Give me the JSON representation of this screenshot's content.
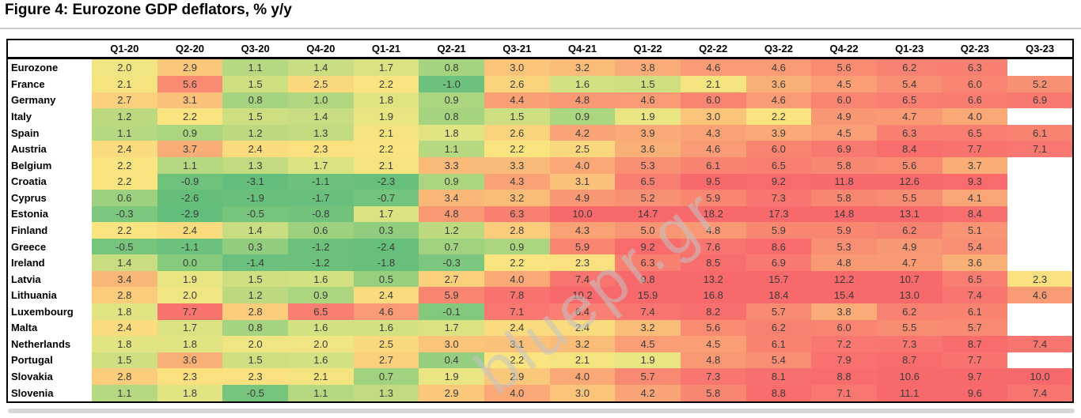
{
  "figure": {
    "title": "Figure 4: Eurozone GDP deflators, % y/y"
  },
  "watermark": {
    "text": "bluepr.gr"
  },
  "chart_data": {
    "type": "heatmap",
    "title": "Figure 4: Eurozone GDP deflators, % y/y",
    "unit": "% y/y",
    "columns": [
      "Q1-20",
      "Q2-20",
      "Q3-20",
      "Q4-20",
      "Q1-21",
      "Q2-21",
      "Q3-21",
      "Q4-21",
      "Q1-22",
      "Q2-22",
      "Q3-22",
      "Q4-22",
      "Q1-23",
      "Q2-23",
      "Q3-23"
    ],
    "rows": [
      {
        "name": "Eurozone",
        "values": [
          2.0,
          2.9,
          1.1,
          1.4,
          1.7,
          0.8,
          3.0,
          3.2,
          3.8,
          4.6,
          4.6,
          5.6,
          6.2,
          6.3,
          null
        ]
      },
      {
        "name": "France",
        "values": [
          2.1,
          5.6,
          1.5,
          2.5,
          2.2,
          -1.0,
          2.6,
          1.6,
          1.5,
          2.1,
          3.6,
          4.5,
          5.4,
          6.0,
          5.2
        ]
      },
      {
        "name": "Germany",
        "values": [
          2.7,
          3.1,
          0.8,
          1.0,
          1.8,
          0.9,
          4.4,
          4.8,
          4.6,
          6.0,
          4.6,
          6.0,
          6.5,
          6.6,
          6.9
        ]
      },
      {
        "name": "Italy",
        "values": [
          1.2,
          2.2,
          1.5,
          1.4,
          1.9,
          0.8,
          1.5,
          0.9,
          1.9,
          3.0,
          2.2,
          4.9,
          4.7,
          4.0,
          null
        ]
      },
      {
        "name": "Spain",
        "values": [
          1.1,
          0.9,
          1.2,
          1.3,
          2.1,
          1.8,
          2.6,
          4.2,
          3.9,
          4.3,
          3.9,
          4.5,
          6.3,
          6.5,
          6.1
        ]
      },
      {
        "name": "Austria",
        "values": [
          2.4,
          3.7,
          2.4,
          2.3,
          2.2,
          1.1,
          2.2,
          2.5,
          3.6,
          4.6,
          6.0,
          6.9,
          8.4,
          7.7,
          7.1
        ]
      },
      {
        "name": "Belgium",
        "values": [
          2.2,
          1.1,
          1.3,
          1.7,
          2.1,
          3.3,
          3.3,
          4.0,
          5.3,
          6.1,
          6.5,
          5.8,
          5.6,
          3.7,
          null
        ]
      },
      {
        "name": "Croatia",
        "values": [
          2.2,
          -0.9,
          -3.1,
          -1.1,
          -2.3,
          0.9,
          4.3,
          3.1,
          6.5,
          9.5,
          9.2,
          11.8,
          12.6,
          9.3,
          null
        ]
      },
      {
        "name": "Cyprus",
        "values": [
          0.6,
          -2.6,
          -1.9,
          -1.7,
          -0.7,
          3.4,
          3.2,
          4.9,
          5.2,
          5.9,
          7.3,
          5.8,
          5.5,
          4.1,
          null
        ]
      },
      {
        "name": "Estonia",
        "values": [
          -0.3,
          -2.9,
          -0.5,
          -0.8,
          1.7,
          4.8,
          6.3,
          10.0,
          14.7,
          18.2,
          17.3,
          14.8,
          13.1,
          8.4,
          null
        ]
      },
      {
        "name": "Finland",
        "values": [
          2.2,
          2.4,
          1.4,
          0.6,
          0.3,
          1.2,
          2.8,
          4.3,
          5.0,
          4.8,
          5.9,
          5.9,
          6.2,
          5.1,
          null
        ]
      },
      {
        "name": "Greece",
        "values": [
          -0.5,
          -1.1,
          0.3,
          -1.2,
          -2.4,
          0.7,
          0.9,
          5.9,
          9.2,
          7.6,
          8.6,
          5.3,
          4.9,
          5.4,
          null
        ]
      },
      {
        "name": "Ireland",
        "values": [
          1.4,
          0.0,
          -1.4,
          -1.2,
          -1.8,
          -0.3,
          2.2,
          2.3,
          6.3,
          8.5,
          6.9,
          4.8,
          4.7,
          3.6,
          null
        ]
      },
      {
        "name": "Latvia",
        "values": [
          3.4,
          1.9,
          1.5,
          1.6,
          0.5,
          2.7,
          4.0,
          7.4,
          9.8,
          13.2,
          15.7,
          12.2,
          10.7,
          6.5,
          2.3
        ]
      },
      {
        "name": "Lithuania",
        "values": [
          2.8,
          2.0,
          1.2,
          0.9,
          2.4,
          5.9,
          7.8,
          10.2,
          15.9,
          16.8,
          18.4,
          15.4,
          13.0,
          7.4,
          4.6
        ]
      },
      {
        "name": "Luxembourg",
        "values": [
          1.8,
          7.7,
          2.8,
          6.5,
          4.6,
          -0.1,
          7.1,
          6.4,
          7.4,
          8.2,
          5.7,
          3.8,
          6.2,
          6.1,
          null
        ]
      },
      {
        "name": "Malta",
        "values": [
          2.4,
          1.7,
          0.8,
          1.6,
          1.6,
          1.7,
          2.4,
          2.4,
          3.2,
          5.6,
          6.2,
          6.0,
          5.5,
          5.7,
          null
        ]
      },
      {
        "name": "Netherlands",
        "values": [
          1.8,
          1.8,
          2.0,
          2.0,
          2.5,
          3.0,
          3.1,
          3.2,
          4.5,
          4.5,
          6.1,
          7.2,
          7.3,
          8.7,
          7.4
        ]
      },
      {
        "name": "Portugal",
        "values": [
          1.5,
          3.6,
          1.5,
          1.6,
          2.7,
          0.4,
          2.2,
          2.1,
          1.9,
          4.8,
          5.4,
          7.9,
          8.7,
          7.7,
          null
        ]
      },
      {
        "name": "Slovakia",
        "values": [
          2.8,
          2.3,
          2.3,
          2.1,
          0.7,
          1.9,
          2.9,
          4.0,
          5.7,
          7.3,
          8.1,
          8.8,
          10.6,
          9.7,
          10.0
        ]
      },
      {
        "name": "Slovenia",
        "values": [
          1.1,
          1.8,
          -0.5,
          1.1,
          1.3,
          2.9,
          4.0,
          3.0,
          4.2,
          5.8,
          8.8,
          7.1,
          11.1,
          9.6,
          7.4
        ]
      }
    ],
    "colorscale": {
      "style": "green-yellow-red",
      "blank": "#FFFFFF",
      "stops": [
        [
          -3.1,
          "#63BE7B"
        ],
        [
          -1.0,
          "#6CC17C"
        ],
        [
          -0.3,
          "#7CC77D"
        ],
        [
          0.3,
          "#90CD7E"
        ],
        [
          0.8,
          "#A5D37F"
        ],
        [
          1.2,
          "#BCD980"
        ],
        [
          1.6,
          "#D4E182"
        ],
        [
          1.9,
          "#E9E583"
        ],
        [
          2.2,
          "#FAE47F"
        ],
        [
          2.6,
          "#FAD47C"
        ],
        [
          3.0,
          "#FAC47A"
        ],
        [
          3.6,
          "#F9B077"
        ],
        [
          4.4,
          "#F9A075"
        ],
        [
          5.2,
          "#F89173"
        ],
        [
          6.0,
          "#F88471"
        ],
        [
          7.0,
          "#F87870"
        ],
        [
          8.2,
          "#F86F6D"
        ],
        [
          9.5,
          "#F8696B"
        ]
      ]
    }
  }
}
